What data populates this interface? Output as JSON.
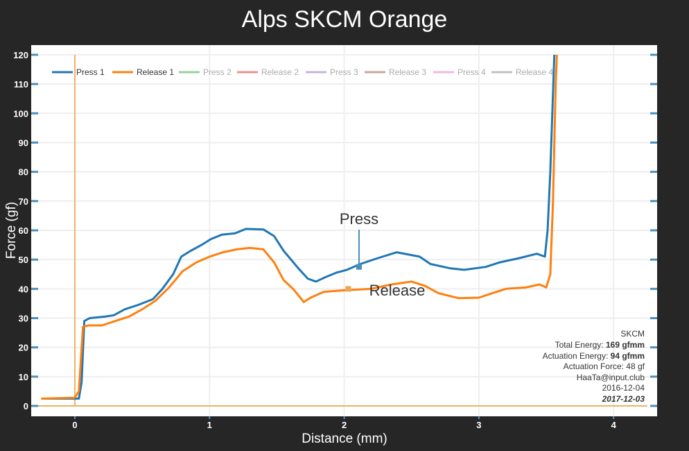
{
  "chart_data": {
    "type": "line",
    "title": "Alps SKCM Orange",
    "xlabel": "Distance (mm)",
    "ylabel": "Force (gf)",
    "xlim": [
      -0.3,
      4.3
    ],
    "ylim": [
      -3.5,
      121.5
    ],
    "xticks": [
      0,
      1,
      2,
      3,
      4
    ],
    "yticks": [
      0,
      10,
      20,
      30,
      40,
      50,
      60,
      70,
      80,
      90,
      100,
      110,
      120
    ],
    "grid": true,
    "legend_position": "top-left",
    "colors": {
      "background": "#262626",
      "plot_bg": "#ffffff",
      "zero_line": "#f0b060",
      "tick": "#4a90b8"
    },
    "series": [
      {
        "name": "Press 1",
        "color": "#1f77b4",
        "active": true,
        "x": [
          -0.25,
          0.0,
          0.03,
          0.05,
          0.07,
          0.11,
          0.22,
          0.29,
          0.37,
          0.47,
          0.58,
          0.65,
          0.73,
          0.79,
          0.86,
          0.94,
          1.01,
          1.09,
          1.19,
          1.27,
          1.4,
          1.48,
          1.55,
          1.66,
          1.73,
          1.79,
          1.86,
          1.94,
          2.02,
          2.12,
          2.25,
          2.39,
          2.56,
          2.64,
          2.79,
          2.89,
          3.05,
          3.15,
          3.3,
          3.43,
          3.49,
          3.51,
          3.53,
          3.56,
          3.59
        ],
        "y": [
          2.5,
          2.5,
          2.5,
          8,
          29,
          30,
          30.5,
          31,
          33,
          34.5,
          36.5,
          40,
          45,
          51,
          53,
          55,
          57,
          58.5,
          59,
          60.5,
          60.3,
          58,
          53,
          47,
          43.5,
          42.5,
          44,
          45.5,
          46.5,
          48.5,
          50.5,
          52.5,
          51,
          48.5,
          47,
          46.5,
          47.5,
          49,
          50.5,
          52,
          51,
          60,
          80,
          120,
          121
        ]
      },
      {
        "name": "Release 1",
        "color": "#ff7f0e",
        "active": true,
        "x": [
          -0.25,
          0.0,
          0.03,
          0.06,
          0.1,
          0.2,
          0.3,
          0.4,
          0.5,
          0.6,
          0.7,
          0.8,
          0.9,
          1.0,
          1.1,
          1.2,
          1.3,
          1.4,
          1.48,
          1.55,
          1.62,
          1.7,
          1.75,
          1.85,
          2.0,
          2.2,
          2.35,
          2.5,
          2.6,
          2.7,
          2.85,
          3.0,
          3.1,
          3.2,
          3.35,
          3.45,
          3.5,
          3.53,
          3.55,
          3.57,
          3.58
        ],
        "y": [
          2.5,
          2.8,
          5,
          27,
          27.5,
          27.5,
          29,
          30.5,
          33,
          36,
          40.5,
          46,
          49,
          51,
          52.5,
          53.5,
          54,
          53.5,
          49,
          43,
          40,
          35.5,
          37,
          39,
          39.5,
          40,
          41.5,
          42.5,
          41,
          38.5,
          36.8,
          37,
          38.5,
          40,
          40.5,
          41.5,
          40.5,
          45,
          70,
          110,
          121
        ]
      },
      {
        "name": "Press 2",
        "color": "#98d19a",
        "active": false
      },
      {
        "name": "Release 2",
        "color": "#e8908c",
        "active": false
      },
      {
        "name": "Press 3",
        "color": "#c5b3dc",
        "active": false
      },
      {
        "name": "Release 3",
        "color": "#c8a8a0",
        "active": false
      },
      {
        "name": "Press 4",
        "color": "#f2b8dc",
        "active": false
      },
      {
        "name": "Release 4",
        "color": "#c0c0c0",
        "active": false
      }
    ],
    "annotations": [
      {
        "text": "Press",
        "x": 2.11,
        "y": 47.5,
        "color": "#4a90b8"
      },
      {
        "text": "Release",
        "x": 2.03,
        "y": 40,
        "color": "#e8a850"
      }
    ],
    "info_box": {
      "switch": "SKCM",
      "total_energy_label": "Total Energy: ",
      "total_energy_value": "169 gfmm",
      "actuation_energy_label": "Actuation Energy: ",
      "actuation_energy_value": "94 gfmm",
      "actuation_force": "Actuation Force: 48 gf",
      "author": "HaaTa@input.club",
      "date1": "2016-12-04",
      "date2": "2017-12-03"
    }
  }
}
